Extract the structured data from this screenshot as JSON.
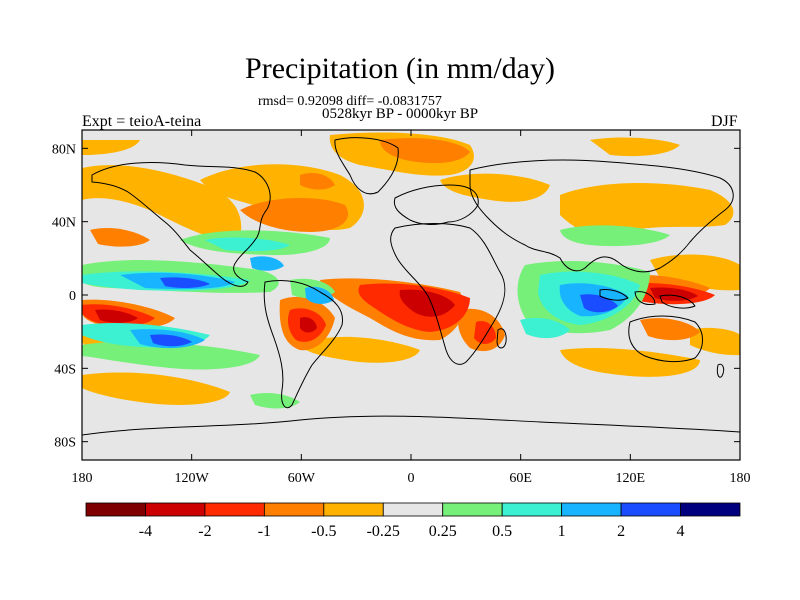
{
  "title": "Precipitation (in mm/day)",
  "stats": "rmsd= 0.92098 diff= -0.0831757",
  "period": "0528kyr BP - 0000kyr BP",
  "experiment": "Expt = teioA-teina",
  "season": "DJF",
  "lat_ticks": [
    "80N",
    "40N",
    "0",
    "40S",
    "80S"
  ],
  "lon_ticks": [
    "180",
    "120W",
    "60W",
    "0",
    "60E",
    "120E",
    "180"
  ],
  "colorbar": {
    "labels": [
      "-4",
      "-2",
      "-1",
      "-0.5",
      "-0.25",
      "0.25",
      "0.5",
      "1",
      "2",
      "4"
    ],
    "colors": [
      "#7f0000",
      "#cc0000",
      "#ff2a00",
      "#ff7f00",
      "#ffb300",
      "#e6e6e6",
      "#77f07a",
      "#3cf0d2",
      "#19b4ff",
      "#1a4dff",
      "#00007f"
    ]
  }
}
